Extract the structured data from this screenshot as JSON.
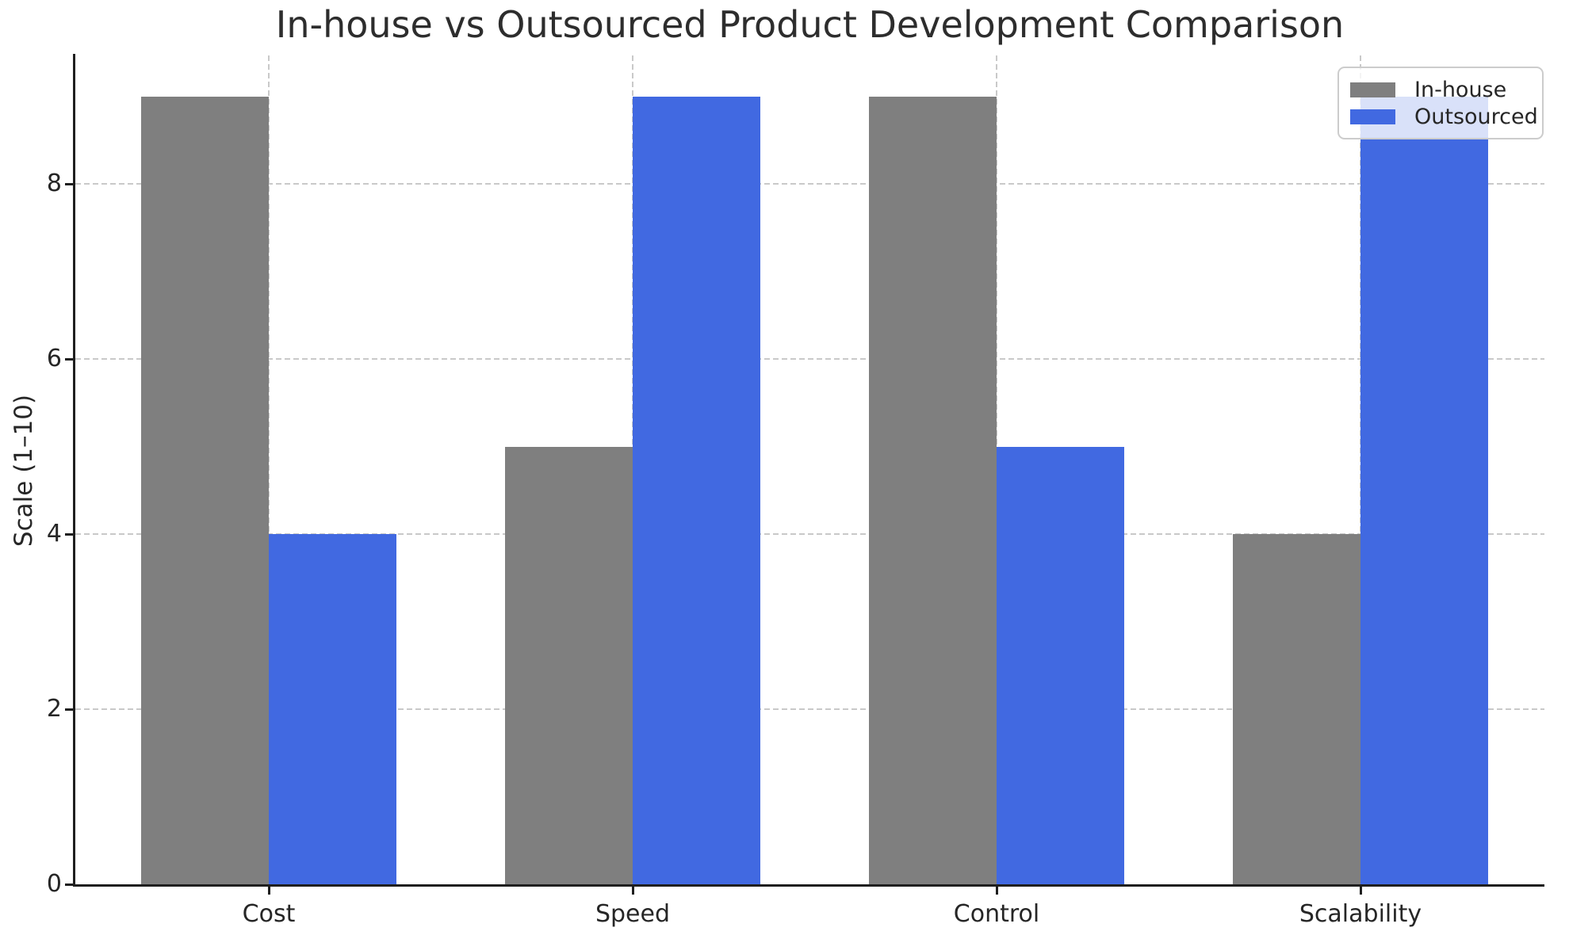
{
  "chart_data": {
    "type": "bar",
    "title": "In-house vs Outsourced Product Development Comparison",
    "xlabel": "",
    "ylabel": "Scale (1–10)",
    "categories": [
      "Cost",
      "Speed",
      "Control",
      "Scalability"
    ],
    "series": [
      {
        "name": "In-house",
        "color": "#7f7f7f",
        "values": [
          9,
          5,
          9,
          4
        ]
      },
      {
        "name": "Outsourced",
        "color": "#4169e1",
        "values": [
          4,
          9,
          5,
          9
        ]
      }
    ],
    "yticks": [
      0,
      2,
      4,
      6,
      8
    ],
    "ylim": [
      0,
      9.45
    ],
    "grid": "dashed-both-axes",
    "legend_position": "upper-right",
    "colors": {
      "grid": "#c9c9c9",
      "spine": "#1f1f1f",
      "text": "#262626",
      "legend_border": "#cccccc"
    }
  }
}
